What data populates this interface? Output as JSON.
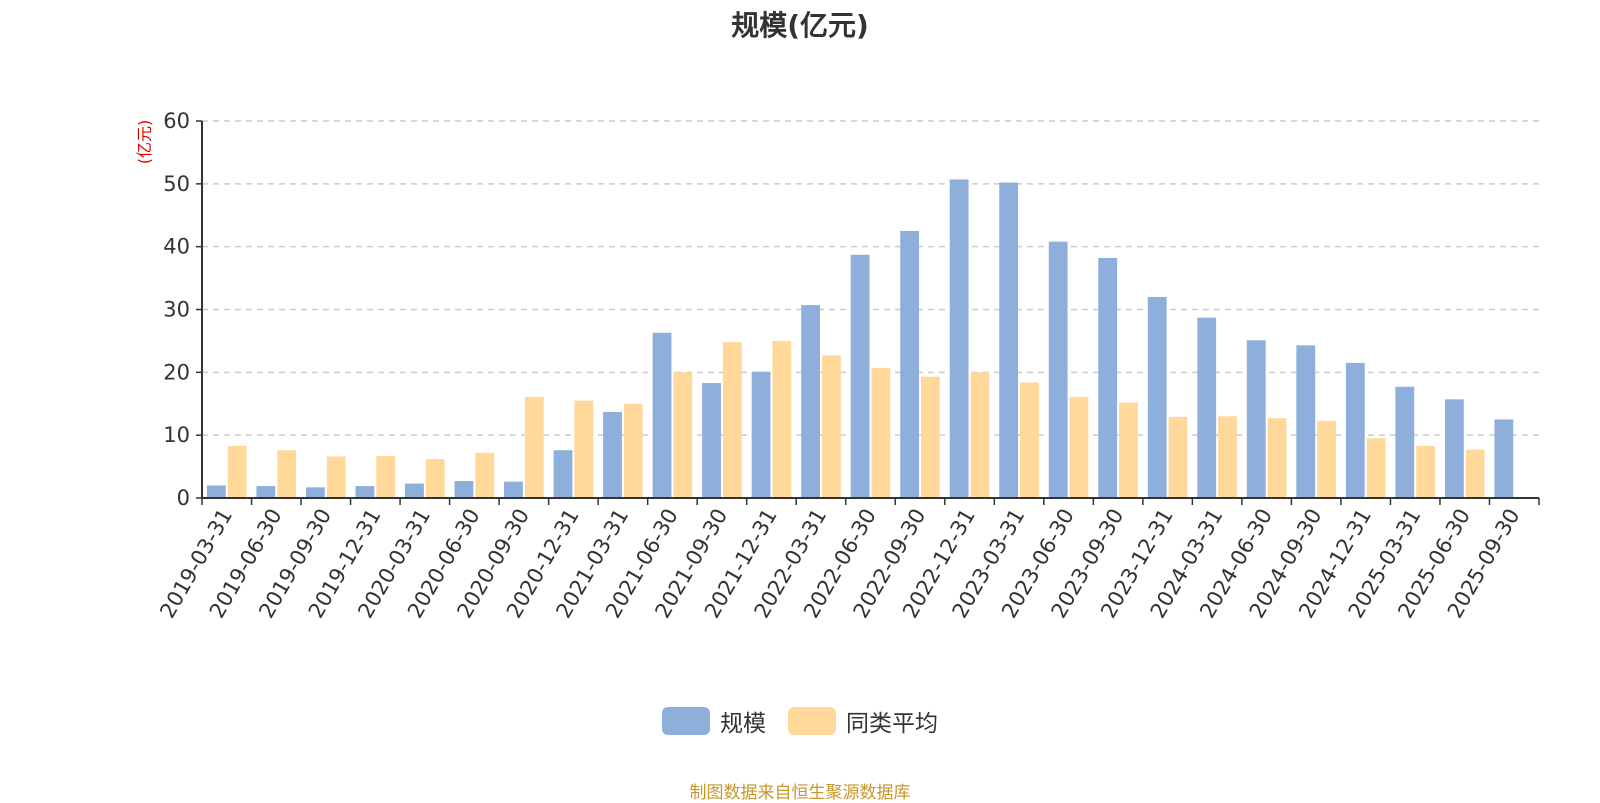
{
  "chart_data": {
    "type": "bar",
    "title": "规模(亿元)",
    "ylabel": "(亿元)",
    "ylim": [
      0,
      60
    ],
    "yticks": [
      0,
      10,
      20,
      30,
      40,
      50,
      60
    ],
    "grid": true,
    "legend_position": "bottom-center",
    "categories": [
      "2019-03-31",
      "2019-06-30",
      "2019-09-30",
      "2019-12-31",
      "2020-03-31",
      "2020-06-30",
      "2020-09-30",
      "2020-12-31",
      "2021-03-31",
      "2021-06-30",
      "2021-09-30",
      "2021-12-31",
      "2022-03-31",
      "2022-06-30",
      "2022-09-30",
      "2022-12-31",
      "2023-03-31",
      "2023-06-30",
      "2023-09-30",
      "2023-12-31",
      "2024-03-31",
      "2024-06-30",
      "2024-09-30",
      "2024-12-31",
      "2025-03-31",
      "2025-06-30",
      "2025-09-30"
    ],
    "series": [
      {
        "name": "规模",
        "color": "#8eaedb",
        "values": [
          2.0,
          1.9,
          1.7,
          1.9,
          2.3,
          2.7,
          2.6,
          7.6,
          13.7,
          26.3,
          18.3,
          20.1,
          30.7,
          38.7,
          42.5,
          50.7,
          50.2,
          40.8,
          38.2,
          32.0,
          28.7,
          25.1,
          24.3,
          21.5,
          17.7,
          15.7,
          12.5
        ]
      },
      {
        "name": "同类平均",
        "color": "#ffd89a",
        "values": [
          8.3,
          7.6,
          6.6,
          6.7,
          6.2,
          7.2,
          16.1,
          15.5,
          15.0,
          20.0,
          24.8,
          25.0,
          22.7,
          20.7,
          19.3,
          20.0,
          18.4,
          16.1,
          15.2,
          12.9,
          13.0,
          12.7,
          12.3,
          9.5,
          8.3,
          7.7,
          null
        ]
      }
    ]
  },
  "legend": {
    "item1": "规模",
    "item2": "同类平均"
  },
  "source_text": "制图数据来自恒生聚源数据库",
  "source_color": "#c8962a"
}
